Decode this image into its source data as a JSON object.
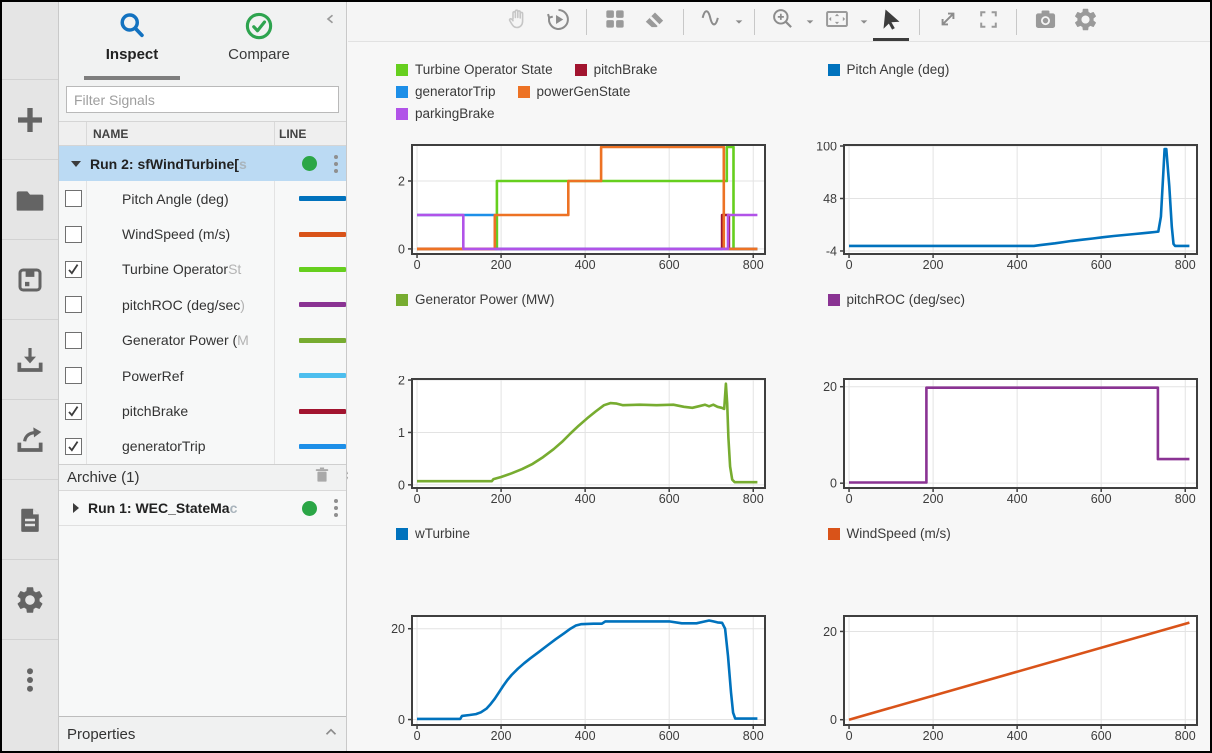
{
  "left_panel": {
    "tabs": [
      {
        "label": "Inspect",
        "selected": true
      },
      {
        "label": "Compare",
        "selected": false
      }
    ],
    "filter_placeholder": "Filter Signals",
    "table": {
      "columns": [
        "NAME",
        "LINE"
      ]
    },
    "run2": {
      "label": "Run 2: sfWindTurbine[",
      "fade": "s"
    },
    "signals": [
      {
        "label": "Pitch Angle (deg)",
        "fade": "",
        "checked": false,
        "color": "#0072BD"
      },
      {
        "label": "WindSpeed (m/s)",
        "fade": "",
        "checked": false,
        "color": "#D95319"
      },
      {
        "label": "Turbine Operator ",
        "fade": "St",
        "checked": true,
        "color": "#66CF1E"
      },
      {
        "label": "pitchROC (deg/sec",
        "fade": ")",
        "checked": false,
        "color": "#8A3393"
      },
      {
        "label": "Generator Power (",
        "fade": "M",
        "checked": false,
        "color": "#77AC30"
      },
      {
        "label": "PowerRef",
        "fade": "",
        "checked": false,
        "color": "#4DBEEE"
      },
      {
        "label": "pitchBrake",
        "fade": "",
        "checked": true,
        "color": "#A2142F"
      },
      {
        "label": "generatorTrip",
        "fade": "",
        "checked": true,
        "color": "#1D8FE8"
      }
    ],
    "archive": {
      "label": "Archive (1)"
    },
    "run1": {
      "label": "Run 1: WEC_StateMa",
      "fade": "c"
    },
    "properties_label": "Properties",
    "status_dot_color": "#2BA646",
    "selected_row_color": "#BBDAF3"
  },
  "icons": {
    "left_toolbar": [
      "add",
      "open",
      "save",
      "import",
      "export",
      "report",
      "settings",
      "more"
    ],
    "top_toolbar": [
      "pan",
      "replay",
      "layout-grid",
      "eraser",
      "signal-wave",
      "zoom-in",
      "fit-to-view",
      "cursor",
      "expand",
      "fullscreen",
      "snapshot",
      "settings"
    ]
  },
  "chart_data": [
    {
      "type": "line",
      "name": "states",
      "legend": [
        {
          "label": "Turbine Operator State",
          "color": "#66CF1E"
        },
        {
          "label": "pitchBrake",
          "color": "#A2142F"
        },
        {
          "label": "generatorTrip",
          "color": "#1D8FE8"
        },
        {
          "label": "powerGenState",
          "color": "#ED7224"
        },
        {
          "label": "parkingBrake",
          "color": "#B153E8"
        }
      ],
      "xlim": [
        -12,
        828
      ],
      "ylim": [
        -0.15,
        3.06
      ],
      "xticks": [
        0,
        200,
        400,
        600,
        800
      ],
      "yticks": [
        0,
        2
      ],
      "series": [
        {
          "name": "Turbine Operator State",
          "color": "#66CF1E",
          "points": [
            [
              0,
              0
            ],
            [
              190,
              0
            ],
            [
              190,
              2
            ],
            [
              737,
              2
            ],
            [
              737,
              3
            ],
            [
              753,
              3
            ],
            [
              753,
              0
            ],
            [
              810,
              0
            ]
          ]
        },
        {
          "name": "pitchBrake",
          "color": "#A2142F",
          "points": [
            [
              0,
              0
            ],
            [
              726,
              0
            ],
            [
              726,
              1
            ],
            [
              742,
              1
            ],
            [
              742,
              0
            ],
            [
              810,
              0
            ]
          ]
        },
        {
          "name": "generatorTrip",
          "color": "#1D8FE8",
          "points": [
            [
              0,
              1
            ],
            [
              185,
              1
            ],
            [
              185,
              0
            ],
            [
              810,
              0
            ]
          ]
        },
        {
          "name": "powerGenState",
          "color": "#ED7224",
          "points": [
            [
              0,
              0
            ],
            [
              185,
              0
            ],
            [
              185,
              1
            ],
            [
              360,
              1
            ],
            [
              360,
              2
            ],
            [
              438,
              2
            ],
            [
              438,
              3
            ],
            [
              730,
              3
            ],
            [
              730,
              0
            ],
            [
              810,
              0
            ]
          ]
        },
        {
          "name": "parkingBrake",
          "color": "#B153E8",
          "points": [
            [
              0,
              1
            ],
            [
              110,
              1
            ],
            [
              110,
              0
            ],
            [
              740,
              0
            ],
            [
              740,
              1
            ],
            [
              810,
              1
            ]
          ]
        }
      ]
    },
    {
      "type": "line",
      "name": "pitch-angle",
      "legend": [
        {
          "label": "Pitch Angle (deg)",
          "color": "#0072BD"
        }
      ],
      "xlim": [
        -12,
        828
      ],
      "ylim": [
        -7,
        101
      ],
      "xticks": [
        0,
        200,
        400,
        600,
        800
      ],
      "yticks": [
        -4,
        48,
        100
      ],
      "series": [
        {
          "name": "Pitch Angle (deg)",
          "color": "#0072BD",
          "points": [
            [
              0,
              1
            ],
            [
              440,
              1
            ],
            [
              455,
              1.8
            ],
            [
              470,
              2.6
            ],
            [
              490,
              3.6
            ],
            [
              510,
              4.8
            ],
            [
              530,
              6
            ],
            [
              555,
              7.2
            ],
            [
              580,
              8.4
            ],
            [
              605,
              9.6
            ],
            [
              630,
              10.8
            ],
            [
              655,
              11.8
            ],
            [
              680,
              12.8
            ],
            [
              700,
              13.6
            ],
            [
              715,
              14.2
            ],
            [
              728,
              14.8
            ],
            [
              736,
              15.2
            ],
            [
              742,
              30
            ],
            [
              748,
              75
            ],
            [
              751,
              97
            ],
            [
              755,
              97
            ],
            [
              762,
              60
            ],
            [
              768,
              20
            ],
            [
              772,
              3
            ],
            [
              776,
              1
            ],
            [
              810,
              1
            ]
          ]
        }
      ]
    },
    {
      "type": "line",
      "name": "generator-power",
      "legend": [
        {
          "label": "Generator Power (MW)",
          "color": "#77AC30"
        }
      ],
      "xlim": [
        -12,
        828
      ],
      "ylim": [
        -0.06,
        2.02
      ],
      "xticks": [
        0,
        200,
        400,
        600,
        800
      ],
      "yticks": [
        0,
        1,
        2
      ],
      "series": [
        {
          "name": "Generator Power (MW)",
          "color": "#77AC30",
          "points": [
            [
              0,
              0.07
            ],
            [
              178,
              0.07
            ],
            [
              182,
              0.11
            ],
            [
              200,
              0.15
            ],
            [
              225,
              0.22
            ],
            [
              250,
              0.3
            ],
            [
              275,
              0.4
            ],
            [
              300,
              0.53
            ],
            [
              325,
              0.68
            ],
            [
              345,
              0.82
            ],
            [
              365,
              0.98
            ],
            [
              385,
              1.13
            ],
            [
              405,
              1.27
            ],
            [
              425,
              1.4
            ],
            [
              445,
              1.52
            ],
            [
              460,
              1.56
            ],
            [
              475,
              1.55
            ],
            [
              490,
              1.52
            ],
            [
              530,
              1.53
            ],
            [
              570,
              1.52
            ],
            [
              610,
              1.53
            ],
            [
              635,
              1.49
            ],
            [
              655,
              1.47
            ],
            [
              670,
              1.5
            ],
            [
              685,
              1.53
            ],
            [
              695,
              1.5
            ],
            [
              705,
              1.53
            ],
            [
              715,
              1.49
            ],
            [
              725,
              1.47
            ],
            [
              731,
              1.45
            ],
            [
              735,
              1.93
            ],
            [
              738,
              1.55
            ],
            [
              741,
              0.9
            ],
            [
              745,
              0.35
            ],
            [
              750,
              0.1
            ],
            [
              756,
              0.05
            ],
            [
              810,
              0.05
            ]
          ]
        }
      ]
    },
    {
      "type": "line",
      "name": "pitch-roc",
      "legend": [
        {
          "label": "pitchROC (deg/sec)",
          "color": "#8A3393"
        }
      ],
      "xlim": [
        -12,
        828
      ],
      "ylim": [
        -1,
        21.6
      ],
      "xticks": [
        0,
        200,
        400,
        600,
        800
      ],
      "yticks": [
        0,
        20
      ],
      "series": [
        {
          "name": "pitchROC (deg/sec)",
          "color": "#8A3393",
          "points": [
            [
              0,
              0.15
            ],
            [
              184,
              0.15
            ],
            [
              184,
              19.8
            ],
            [
              735,
              19.8
            ],
            [
              735,
              5
            ],
            [
              810,
              5
            ]
          ]
        }
      ]
    },
    {
      "type": "line",
      "name": "w-turbine",
      "legend": [
        {
          "label": "wTurbine",
          "color": "#0072BD"
        }
      ],
      "xlim": [
        -12,
        828
      ],
      "ylim": [
        -1.2,
        22.8
      ],
      "xticks": [
        0,
        200,
        400,
        600,
        800
      ],
      "yticks": [
        0,
        20
      ],
      "series": [
        {
          "name": "wTurbine",
          "color": "#0072BD",
          "points": [
            [
              0,
              0.15
            ],
            [
              103,
              0.15
            ],
            [
              107,
              0.8
            ],
            [
              125,
              1
            ],
            [
              140,
              1.2
            ],
            [
              152,
              1.6
            ],
            [
              165,
              2.4
            ],
            [
              175,
              3.4
            ],
            [
              185,
              4.6
            ],
            [
              195,
              6
            ],
            [
              205,
              7.4
            ],
            [
              215,
              8.7
            ],
            [
              225,
              9.8
            ],
            [
              240,
              11.2
            ],
            [
              255,
              12.4
            ],
            [
              270,
              13.5
            ],
            [
              290,
              14.9
            ],
            [
              310,
              16.3
            ],
            [
              330,
              17.7
            ],
            [
              350,
              19
            ],
            [
              365,
              20
            ],
            [
              378,
              20.7
            ],
            [
              390,
              21
            ],
            [
              420,
              21.1
            ],
            [
              440,
              21.1
            ],
            [
              448,
              21.6
            ],
            [
              520,
              21.6
            ],
            [
              600,
              21.6
            ],
            [
              630,
              21.2
            ],
            [
              665,
              21.2
            ],
            [
              680,
              21.5
            ],
            [
              695,
              21.8
            ],
            [
              705,
              21.6
            ],
            [
              715,
              21.4
            ],
            [
              726,
              21.3
            ],
            [
              733,
              20
            ],
            [
              740,
              14
            ],
            [
              747,
              6
            ],
            [
              752,
              1.5
            ],
            [
              757,
              0.2
            ],
            [
              810,
              0.2
            ]
          ]
        }
      ]
    },
    {
      "type": "line",
      "name": "wind-speed",
      "legend": [
        {
          "label": "WindSpeed (m/s)",
          "color": "#D95319"
        }
      ],
      "xlim": [
        -12,
        828
      ],
      "ylim": [
        -1.2,
        23.5
      ],
      "xticks": [
        0,
        200,
        400,
        600,
        800
      ],
      "yticks": [
        0,
        20
      ],
      "series": [
        {
          "name": "WindSpeed (m/s)",
          "color": "#D95319",
          "points": [
            [
              0,
              0
            ],
            [
              810,
              22
            ]
          ]
        }
      ]
    }
  ]
}
